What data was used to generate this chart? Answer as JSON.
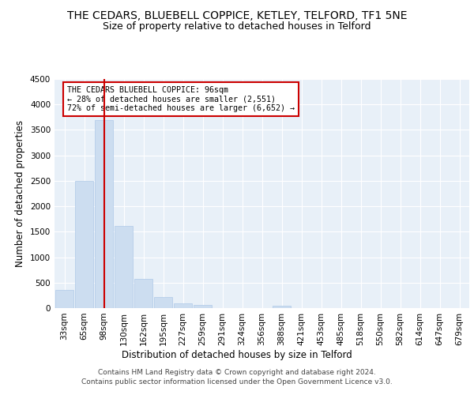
{
  "title": "THE CEDARS, BLUEBELL COPPICE, KETLEY, TELFORD, TF1 5NE",
  "subtitle": "Size of property relative to detached houses in Telford",
  "xlabel": "Distribution of detached houses by size in Telford",
  "ylabel": "Number of detached properties",
  "categories": [
    "33sqm",
    "65sqm",
    "98sqm",
    "130sqm",
    "162sqm",
    "195sqm",
    "227sqm",
    "259sqm",
    "291sqm",
    "324sqm",
    "356sqm",
    "388sqm",
    "421sqm",
    "453sqm",
    "485sqm",
    "518sqm",
    "550sqm",
    "582sqm",
    "614sqm",
    "647sqm",
    "679sqm"
  ],
  "values": [
    350,
    2500,
    3700,
    1620,
    570,
    210,
    95,
    55,
    5,
    5,
    5,
    50,
    5,
    5,
    5,
    5,
    5,
    5,
    5,
    5,
    5
  ],
  "bar_color": "#ccddf0",
  "bar_edge_color": "#aec8e8",
  "highlight_bar_index": 2,
  "highlight_line_color": "#cc0000",
  "ylim": [
    0,
    4500
  ],
  "yticks": [
    0,
    500,
    1000,
    1500,
    2000,
    2500,
    3000,
    3500,
    4000,
    4500
  ],
  "annotation_text": "THE CEDARS BLUEBELL COPPICE: 96sqm\n← 28% of detached houses are smaller (2,551)\n72% of semi-detached houses are larger (6,652) →",
  "footer_line1": "Contains HM Land Registry data © Crown copyright and database right 2024.",
  "footer_line2": "Contains public sector information licensed under the Open Government Licence v3.0.",
  "bg_color": "#ffffff",
  "plot_bg_color": "#e8f0f8",
  "grid_color": "#ffffff",
  "title_fontsize": 10,
  "subtitle_fontsize": 9,
  "axis_label_fontsize": 8.5,
  "tick_fontsize": 7.5,
  "footer_fontsize": 6.5
}
